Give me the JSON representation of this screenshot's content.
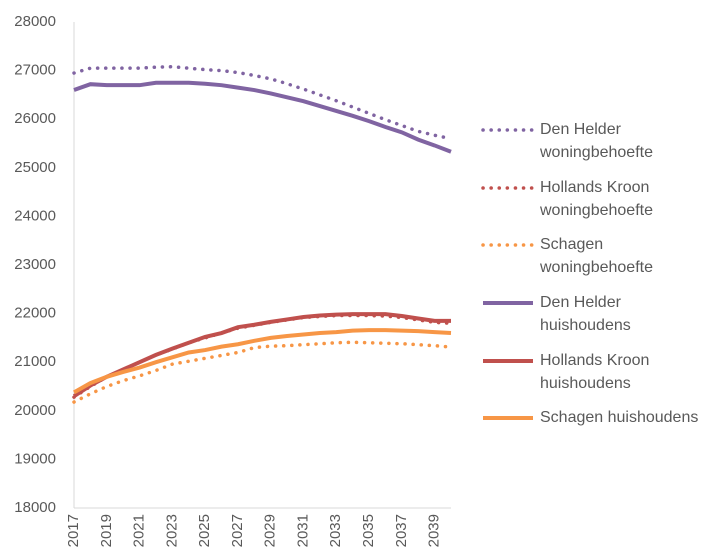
{
  "chart_data": {
    "type": "line",
    "x": [
      2017,
      2018,
      2019,
      2020,
      2021,
      2022,
      2023,
      2024,
      2025,
      2026,
      2027,
      2028,
      2029,
      2030,
      2031,
      2032,
      2033,
      2034,
      2035,
      2036,
      2037,
      2038,
      2039,
      2040
    ],
    "xlim": [
      2017,
      2040
    ],
    "xticks": [
      2017,
      2019,
      2021,
      2023,
      2025,
      2027,
      2029,
      2031,
      2033,
      2035,
      2037,
      2039
    ],
    "ylim": [
      18000,
      28000
    ],
    "yticks": [
      18000,
      19000,
      20000,
      21000,
      22000,
      23000,
      24000,
      25000,
      26000,
      27000,
      28000
    ],
    "grid": false,
    "legend": "right",
    "series": [
      {
        "name": "Den Helder woningbehoefte",
        "color": "#8064a2",
        "style": "dotted",
        "values": [
          26950,
          27050,
          27050,
          27050,
          27050,
          27070,
          27080,
          27050,
          27020,
          27000,
          26960,
          26900,
          26830,
          26730,
          26620,
          26500,
          26380,
          26250,
          26120,
          25990,
          25870,
          25750,
          25670,
          25600
        ]
      },
      {
        "name": "Hollands Kroon woningbehoefte",
        "color": "#c0504d",
        "style": "dotted",
        "values": [
          20280,
          20500,
          20700,
          20850,
          21000,
          21150,
          21270,
          21400,
          21500,
          21600,
          21700,
          21760,
          21820,
          21870,
          21920,
          21940,
          21960,
          21960,
          21960,
          21950,
          21920,
          21870,
          21820,
          21800
        ]
      },
      {
        "name": "Schagen woningbehoefte",
        "color": "#f79646",
        "style": "dotted",
        "values": [
          20180,
          20350,
          20500,
          20620,
          20720,
          20830,
          20960,
          21020,
          21080,
          21140,
          21200,
          21300,
          21330,
          21340,
          21360,
          21380,
          21400,
          21410,
          21400,
          21390,
          21380,
          21360,
          21340,
          21310
        ]
      },
      {
        "name": "Den Helder huishoudens",
        "color": "#8064a2",
        "style": "solid",
        "values": [
          26600,
          26720,
          26700,
          26700,
          26700,
          26750,
          26750,
          26750,
          26730,
          26700,
          26650,
          26600,
          26530,
          26450,
          26370,
          26270,
          26170,
          26070,
          25960,
          25840,
          25730,
          25580,
          25460,
          25330
        ]
      },
      {
        "name": "Hollands Kroon huishoudens",
        "color": "#c0504d",
        "style": "solid",
        "values": [
          20300,
          20520,
          20700,
          20850,
          21000,
          21150,
          21280,
          21400,
          21520,
          21600,
          21720,
          21770,
          21830,
          21880,
          21930,
          21960,
          21980,
          21990,
          21990,
          21990,
          21950,
          21900,
          21850,
          21850
        ]
      },
      {
        "name": "Schagen huishoudens",
        "color": "#f79646",
        "style": "solid",
        "values": [
          20380,
          20570,
          20700,
          20800,
          20890,
          21000,
          21100,
          21200,
          21250,
          21320,
          21370,
          21440,
          21500,
          21540,
          21570,
          21600,
          21620,
          21650,
          21660,
          21660,
          21650,
          21640,
          21620,
          21600
        ]
      }
    ]
  }
}
